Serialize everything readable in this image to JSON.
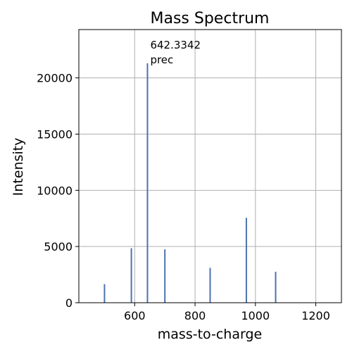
{
  "chart_data": {
    "type": "bar",
    "title": "Mass Spectrum",
    "xlabel": "mass-to-charge",
    "ylabel": "Intensity",
    "xlim": [
      415,
      1285
    ],
    "ylim": [
      0,
      24300
    ],
    "xticks": [
      600,
      800,
      1000,
      1200
    ],
    "yticks": [
      0,
      5000,
      10000,
      15000,
      20000
    ],
    "grid": true,
    "series": [
      {
        "x": [
          500,
          589,
          642.3342,
          700,
          850,
          970,
          1067
        ],
        "values": [
          1650,
          4850,
          21300,
          4750,
          3100,
          7550,
          2750
        ]
      }
    ],
    "annotations": [
      {
        "x": 642.3342,
        "y": 21300,
        "lines": [
          "642.3342",
          "prec"
        ]
      }
    ],
    "colors": {
      "bar": "#4c72b0",
      "grid": "#b0b0b0",
      "axis": "#000000"
    }
  }
}
